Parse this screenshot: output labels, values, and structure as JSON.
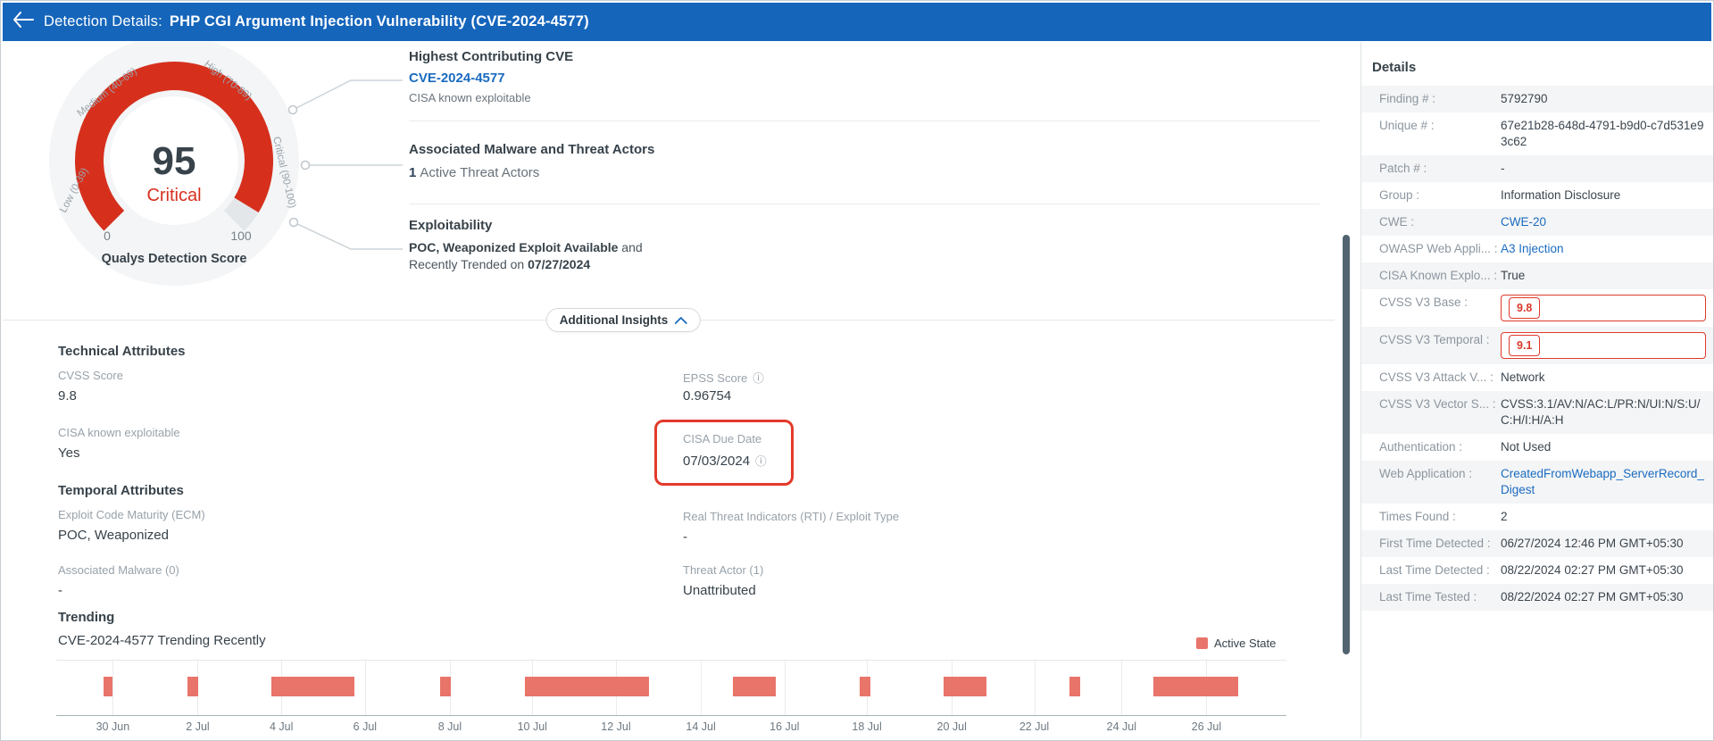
{
  "colors": {
    "header_blue": "#1565BB",
    "link_blue": "#1A6BC0",
    "gauge_red": "#D6301D",
    "bar_salmon": "#E8746A",
    "annotation_red": "#E3392B"
  },
  "header": {
    "title_prefix": "Detection Details:",
    "title": "PHP CGI Argument Injection Vulnerability (CVE-2024-4577)"
  },
  "gauge": {
    "score": "95",
    "severity": "Critical",
    "score_pct": 95,
    "min": "0",
    "max": "100",
    "caption": "Qualys Detection Score",
    "segments": [
      "Low (0-39)",
      "Medium (40-69)",
      "High (70-89)",
      "Critical (90-100)"
    ]
  },
  "insights": {
    "cve": {
      "title": "Highest Contributing CVE",
      "cve_id": "CVE-2024-4577",
      "note": "CISA known exploitable"
    },
    "malware": {
      "title": "Associated Malware and Threat Actors",
      "count": "1",
      "text": "Active Threat Actors"
    },
    "exploitability": {
      "title": "Exploitability",
      "line1_bold": "POC, Weaponized Exploit Available",
      "line1_rest": " and",
      "line2_prefix": "Recently Trended on ",
      "line2_date": "07/27/2024"
    }
  },
  "additional_insights": {
    "label": "Additional Insights"
  },
  "technical": {
    "title": "Technical Attributes",
    "cvss_label": "CVSS Score",
    "cvss_value": "9.8",
    "cisa_label": "CISA known exploitable",
    "cisa_value": "Yes",
    "epss_label": "EPSS Score",
    "epss_info_icon": "ⓘ",
    "epss_value": "0.96754",
    "due_label": "CISA Due Date",
    "due_value": "07/03/2024",
    "due_info_icon": "ⓘ"
  },
  "temporal": {
    "title": "Temporal Attributes",
    "ecm_label": "Exploit Code Maturity (ECM)",
    "ecm_value": "POC, Weaponized",
    "rti_label": "Real Threat Indicators (RTI) / Exploit Type",
    "rti_value": "-",
    "malware_label": "Associated Malware (0)",
    "malware_value": "-",
    "actor_label": "Threat Actor (1)",
    "actor_value": "Unattributed"
  },
  "trending": {
    "title": "Trending",
    "subtitle": "CVE-2024-4577 Trending Recently",
    "legend": "Active State"
  },
  "chart_data": {
    "type": "bar",
    "title": "CVE-2024-4577 Trending Recently",
    "legend": [
      "Active State"
    ],
    "legend_position": "top-right",
    "grid": true,
    "x_ticks": [
      "30 Jun",
      "2 Jul",
      "4 Jul",
      "6 Jul",
      "8 Jul",
      "10 Jul",
      "12 Jul",
      "14 Jul",
      "16 Jul",
      "18 Jul",
      "20 Jul",
      "22 Jul",
      "24 Jul",
      "26 Jul"
    ],
    "tick_pcts": [
      4.6,
      11.5,
      18.3,
      25.1,
      32.0,
      38.7,
      45.5,
      52.4,
      59.2,
      65.9,
      72.8,
      79.5,
      86.6,
      93.5
    ],
    "series": [
      {
        "name": "Active State",
        "periods": [
          {
            "start": "29 Jun",
            "end": "30 Jun",
            "left_pct": 3.85,
            "width_pct": 0.75
          },
          {
            "start": "1 Jul",
            "end": "2 Jul",
            "left_pct": 10.7,
            "width_pct": 0.87
          },
          {
            "start": "4 Jul",
            "end": "6 Jul",
            "left_pct": 17.5,
            "width_pct": 6.76
          },
          {
            "start": "8 Jul",
            "end": "8 Jul",
            "left_pct": 31.2,
            "width_pct": 0.87
          },
          {
            "start": "10 Jul",
            "end": "12 Jul",
            "left_pct": 38.1,
            "width_pct": 10.1
          },
          {
            "start": "15 Jul",
            "end": "16 Jul",
            "left_pct": 55.0,
            "width_pct": 3.5
          },
          {
            "start": "18 Jul",
            "end": "18 Jul",
            "left_pct": 65.3,
            "width_pct": 0.87
          },
          {
            "start": "20 Jul",
            "end": "21 Jul",
            "left_pct": 72.1,
            "width_pct": 3.5
          },
          {
            "start": "23 Jul",
            "end": "23 Jul",
            "left_pct": 82.4,
            "width_pct": 0.87
          },
          {
            "start": "25 Jul",
            "end": "27 Jul",
            "left_pct": 89.2,
            "width_pct": 6.9
          }
        ]
      }
    ]
  },
  "details_panel": {
    "title": "Details",
    "rows": [
      {
        "label": "Finding # :",
        "value": "5792790",
        "type": "text"
      },
      {
        "label": "Unique # :",
        "value": "67e21b28-648d-4791-b9d0-c7d531e93c62",
        "type": "text"
      },
      {
        "label": "Patch # :",
        "value": "-",
        "type": "text"
      },
      {
        "label": "Group :",
        "value": "Information Disclosure",
        "type": "text"
      },
      {
        "label": "CWE :",
        "value": "CWE-20",
        "type": "link"
      },
      {
        "label": "OWASP Web Appli... :",
        "value": "A3 Injection",
        "type": "link"
      },
      {
        "label": "CISA Known Explo... :",
        "value": "True",
        "type": "text"
      },
      {
        "label": "CVSS V3 Base :",
        "value": "9.8",
        "type": "badge"
      },
      {
        "label": "CVSS V3 Temporal :",
        "value": "9.1",
        "type": "badge"
      },
      {
        "label": "CVSS V3 Attack V... :",
        "value": "Network",
        "type": "text"
      },
      {
        "label": "CVSS V3 Vector S... :",
        "value": "CVSS:3.1/AV:N/AC:L/PR:N/UI:N/S:U/C:H/I:H/A:H",
        "type": "text"
      },
      {
        "label": "Authentication :",
        "value": "Not Used",
        "type": "text"
      },
      {
        "label": "Web Application :",
        "value": "CreatedFromWebapp_ServerRecord_Digest",
        "type": "link"
      },
      {
        "label": "Times Found :",
        "value": "2",
        "type": "text"
      },
      {
        "label": "First Time Detected :",
        "value": "06/27/2024 12:46 PM GMT+05:30",
        "type": "text"
      },
      {
        "label": "Last Time Detected :",
        "value": "08/22/2024 02:27 PM GMT+05:30",
        "type": "text"
      },
      {
        "label": "Last Time Tested :",
        "value": "08/22/2024 02:27 PM GMT+05:30",
        "type": "text"
      }
    ]
  }
}
